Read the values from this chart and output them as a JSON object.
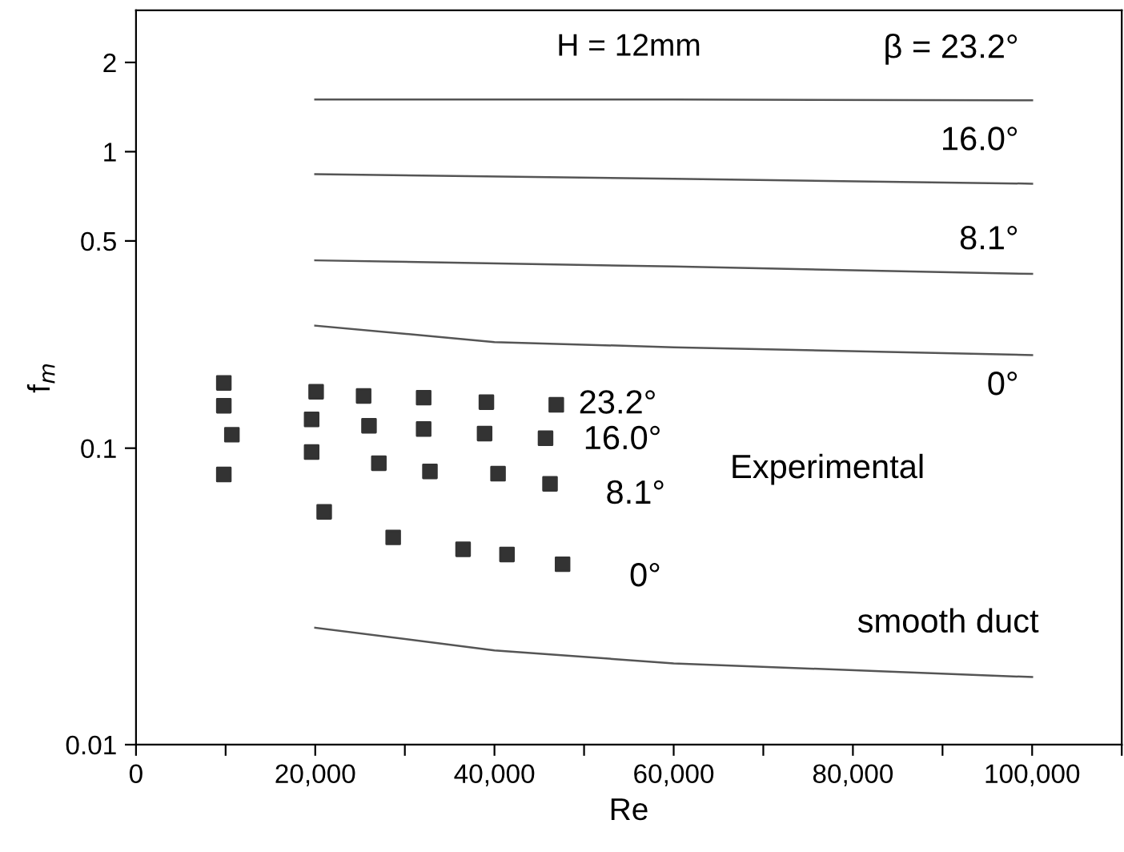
{
  "chart_data": {
    "type": "line",
    "title": "H = 12mm",
    "xlabel": "Re",
    "ylabel": "f$_{m}$",
    "log": "y",
    "grid": false,
    "xlim": [
      0,
      110000
    ],
    "ylim": [
      0.01,
      3
    ],
    "xticks": [
      0,
      {
        "value": 10000,
        "label": null
      },
      {
        "value": 20000,
        "label": "20,000"
      },
      {
        "value": 30000,
        "label": null
      },
      {
        "value": 40000,
        "label": "40,000"
      },
      {
        "value": 50000,
        "label": null
      },
      {
        "value": 60000,
        "label": "60,000"
      },
      {
        "value": 70000,
        "label": null
      },
      {
        "value": 80000,
        "label": "80,000"
      },
      {
        "value": 90000,
        "label": null
      },
      {
        "value": 100000,
        "label": "100,000"
      },
      {
        "value": 110000,
        "label": null
      }
    ],
    "yticks": [
      0.01,
      0.1,
      0.5,
      1,
      2
    ],
    "series": [
      {
        "color": "#555555",
        "marker": "none",
        "line_style": "solid",
        "x": [
          20000,
          60000,
          100000
        ],
        "values": [
          1.5,
          1.5,
          1.49
        ]
      },
      {
        "color": "#555555",
        "marker": "none",
        "line_style": "solid",
        "x": [
          20000,
          60000,
          100000
        ],
        "values": [
          0.84,
          0.81,
          0.78
        ]
      },
      {
        "color": "#555555",
        "marker": "none",
        "line_style": "solid",
        "x": [
          20000,
          60000,
          100000
        ],
        "values": [
          0.43,
          0.41,
          0.387
        ]
      },
      {
        "color": "#555555",
        "marker": "none",
        "line_style": "solid",
        "x": [
          20000,
          40000,
          60000,
          100000
        ],
        "values": [
          0.259,
          0.228,
          0.219,
          0.206
        ]
      },
      {
        "color": "#555555",
        "marker": "none",
        "line_style": "solid",
        "x": [
          20000,
          40000,
          60000,
          100000
        ],
        "values": [
          0.0248,
          0.0208,
          0.0188,
          0.0169
        ]
      },
      {
        "type": "scatter",
        "color": "#333333",
        "marker": "square",
        "x": [
          9800,
          20100,
          25400,
          32100,
          39100,
          46900
        ],
        "values": [
          0.166,
          0.155,
          0.15,
          0.148,
          0.143,
          0.14
        ]
      },
      {
        "type": "scatter",
        "color": "#333333",
        "marker": "square",
        "x": [
          9800,
          19600,
          26000,
          32100,
          38900,
          45700
        ],
        "values": [
          0.139,
          0.125,
          0.119,
          0.116,
          0.112,
          0.108
        ]
      },
      {
        "type": "scatter",
        "color": "#333333",
        "marker": "square",
        "x": [
          10700,
          19600,
          27100,
          32800,
          40400,
          46200
        ],
        "values": [
          0.111,
          0.097,
          0.089,
          0.0835,
          0.082,
          0.0758
        ]
      },
      {
        "type": "scatter",
        "color": "#333333",
        "marker": "square",
        "x": [
          9800,
          21000,
          28700,
          36500,
          41400,
          47600
        ],
        "values": [
          0.0815,
          0.061,
          0.05,
          0.0456,
          0.0438,
          0.0406
        ]
      }
    ],
    "annotations": [
      "β = 23.2°",
      "16.0°",
      "8.1°",
      "0°",
      "smooth duct",
      "23.2°",
      "16.0°",
      "8.1°",
      "0°",
      "Experimental"
    ]
  }
}
